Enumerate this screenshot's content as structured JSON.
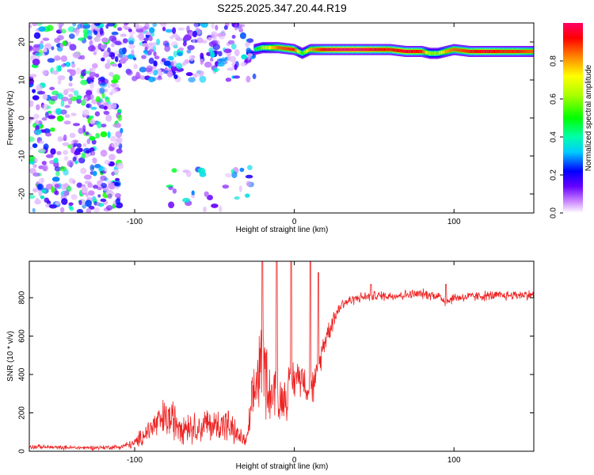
{
  "title": "S225.2025.347.20.44.R19",
  "chart_data": [
    {
      "type": "heatmap",
      "xlabel": "Height of straight line (km)",
      "ylabel": "Frequency (Hz)",
      "xlim": [
        -166,
        150
      ],
      "ylim": [
        -25,
        25
      ],
      "x_ticks": [
        -100,
        0,
        100
      ],
      "y_ticks": [
        -20,
        -10,
        0,
        10,
        20
      ],
      "colorbar": {
        "label": "Normalized spectral amplitude",
        "range": [
          0,
          1
        ],
        "ticks": [
          0.0,
          0.2,
          0.4,
          0.6,
          0.8
        ],
        "tick_labels": [
          "0.0",
          "0.2",
          "0.4",
          "0.6",
          "0.8"
        ],
        "colormap": [
          "#ffffff",
          "#cc88ff",
          "#6600ff",
          "#0000ff",
          "#00ffff",
          "#00ff00",
          "#ffff00",
          "#ff0000",
          "#ff0066"
        ]
      },
      "ridge_track": {
        "x": [
          -25,
          -20,
          -10,
          0,
          5,
          10,
          20,
          30,
          40,
          50,
          60,
          70,
          80,
          85,
          90,
          95,
          100,
          110,
          120,
          130,
          140,
          150
        ],
        "frequency": [
          18,
          18.5,
          18.5,
          18,
          17,
          18,
          18,
          18,
          18,
          18,
          18,
          17.5,
          17.5,
          17,
          17,
          17.5,
          18,
          17.5,
          17.5,
          17.5,
          17.5,
          17.5
        ],
        "amplitude": [
          0.4,
          0.6,
          0.85,
          0.9,
          0.5,
          0.8,
          0.95,
          1.0,
          1.0,
          0.95,
          0.9,
          0.95,
          0.9,
          0.6,
          0.6,
          0.8,
          0.85,
          0.9,
          0.95,
          0.9,
          0.9,
          0.85
        ]
      },
      "noise_regions": [
        {
          "x_range": [
            -166,
            -108
          ],
          "frequency_range": [
            -25,
            25
          ],
          "density": 0.55,
          "amplitude_max": 0.5
        },
        {
          "x_range": [
            -108,
            -25
          ],
          "frequency_range": [
            10,
            25
          ],
          "density": 0.6,
          "amplitude_max": 0.35
        },
        {
          "x_range": [
            -80,
            -25
          ],
          "frequency_range": [
            -25,
            -13
          ],
          "density": 0.15,
          "amplitude_max": 0.45
        }
      ]
    },
    {
      "type": "line",
      "xlabel": "Height of straight line (km)",
      "ylabel": "SNR (10 * v/v)",
      "xlim": [
        -166,
        150
      ],
      "ylim": [
        0,
        990
      ],
      "x_ticks": [
        -100,
        0,
        100
      ],
      "y_ticks": [
        0,
        200,
        400,
        600,
        800
      ],
      "series": [
        {
          "name": "SNR",
          "color": "#ee2222",
          "x": [
            -166,
            -150,
            -130,
            -110,
            -100,
            -95,
            -90,
            -85,
            -80,
            -75,
            -70,
            -65,
            -60,
            -55,
            -50,
            -45,
            -40,
            -35,
            -30,
            -27,
            -24,
            -22,
            -20,
            -18,
            -15,
            -12,
            -10,
            -5,
            0,
            5,
            8,
            10,
            12,
            15,
            18,
            20,
            25,
            30,
            40,
            50,
            60,
            70,
            80,
            90,
            95,
            100,
            110,
            120,
            130,
            140,
            150
          ],
          "values": [
            25,
            20,
            18,
            22,
            40,
            80,
            120,
            150,
            170,
            160,
            140,
            130,
            120,
            140,
            130,
            150,
            120,
            80,
            50,
            200,
            350,
            450,
            500,
            420,
            300,
            320,
            250,
            300,
            380,
            400,
            330,
            380,
            330,
            420,
            550,
            600,
            700,
            770,
            800,
            810,
            810,
            815,
            820,
            810,
            780,
            800,
            805,
            810,
            810,
            815,
            815
          ],
          "noise_amplitude": [
            12,
            10,
            10,
            12,
            25,
            50,
            70,
            90,
            110,
            100,
            90,
            80,
            70,
            90,
            80,
            100,
            80,
            50,
            30,
            120,
            200,
            250,
            250,
            220,
            150,
            150,
            120,
            120,
            100,
            90,
            80,
            150,
            80,
            70,
            60,
            60,
            50,
            30,
            25,
            25,
            25,
            25,
            25,
            25,
            30,
            25,
            25,
            25,
            25,
            25,
            25
          ],
          "spikes": [
            [
              -20,
              990
            ],
            [
              -11,
              990
            ],
            [
              -2,
              990
            ],
            [
              10,
              990
            ],
            [
              15,
              930
            ],
            [
              48,
              870
            ],
            [
              95,
              870
            ]
          ]
        }
      ]
    }
  ]
}
